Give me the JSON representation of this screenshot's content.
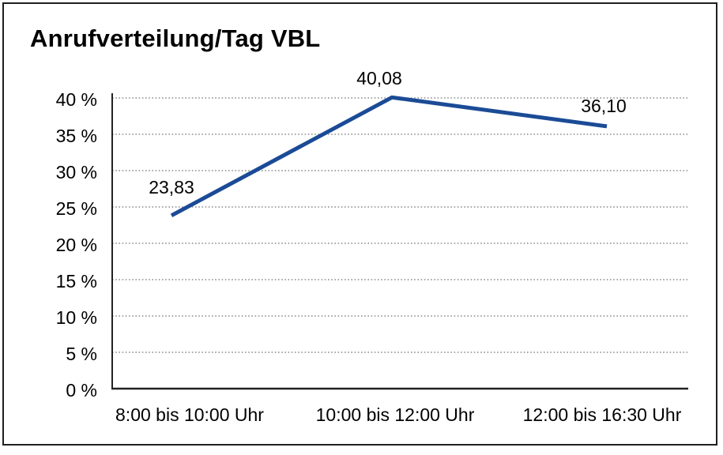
{
  "title": "Anrufverteilung/Tag VBL",
  "chart_data": {
    "type": "line",
    "title": "Anrufverteilung/Tag VBL",
    "categories": [
      "8:00 bis 10:00 Uhr",
      "10:00 bis 12:00 Uhr",
      "12:00 bis 16:30 Uhr"
    ],
    "series": [
      {
        "name": "Anrufverteilung",
        "values": [
          23.83,
          40.08,
          36.1
        ],
        "data_labels": [
          "23,83",
          "40,08",
          "36,10"
        ]
      }
    ],
    "xlabel": "",
    "ylabel": "",
    "ylim": [
      0,
      40
    ],
    "ytick_step": 5,
    "yticks": [
      "0 %",
      "5 %",
      "10 %",
      "15 %",
      "20 %",
      "25 %",
      "30 %",
      "35 %",
      "40 %"
    ],
    "grid": "horizontal-dotted",
    "legend": "none"
  },
  "colors": {
    "line": "#1b4b96",
    "grid": "#8c8c8c",
    "axis": "#222222",
    "border": "#1f1f1f",
    "background": "#ffffff",
    "text": "#000000"
  }
}
